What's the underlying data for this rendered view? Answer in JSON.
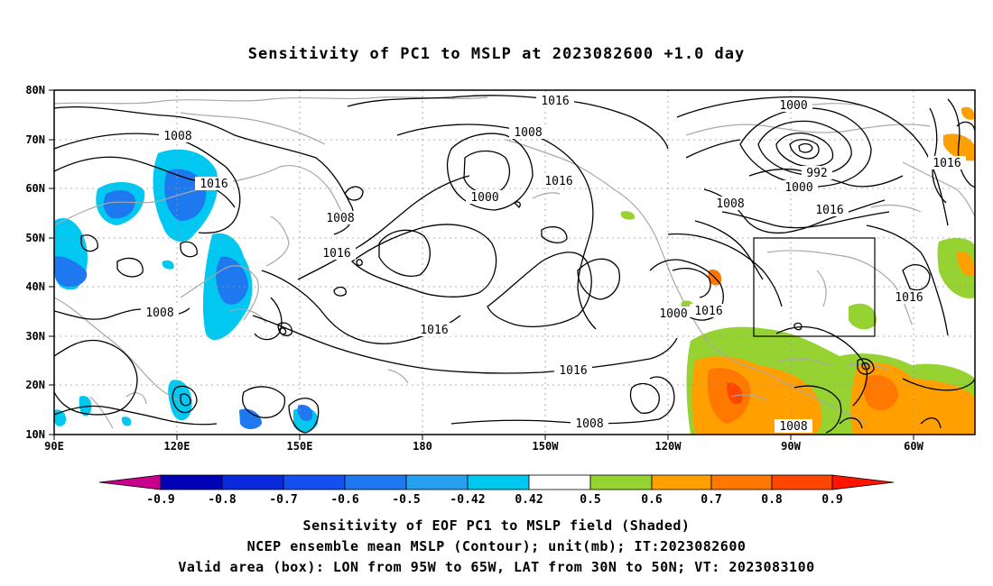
{
  "title": "Sensitivity of PC1 to MSLP at 2023082600 +1.0 day",
  "map": {
    "lat_ticks": [
      "80N",
      "70N",
      "60N",
      "50N",
      "40N",
      "30N",
      "20N",
      "10N"
    ],
    "lon_ticks": [
      "90E",
      "120E",
      "150E",
      "180",
      "150W",
      "120W",
      "90W",
      "60W"
    ],
    "contour_labels": [
      "1016",
      "1008",
      "1016",
      "1000",
      "1016",
      "1008",
      "1016",
      "1008",
      "1016",
      "1016",
      "1000",
      "992",
      "1000",
      "1008",
      "1016",
      "1016",
      "1000",
      "1016",
      "1016",
      "1008",
      "1008"
    ]
  },
  "colorbar": {
    "labels": [
      "-0.9",
      "-0.8",
      "-0.7",
      "-0.6",
      "-0.5",
      "-0.42",
      "0.42",
      "0.5",
      "0.6",
      "0.7",
      "0.8",
      "0.9"
    ],
    "colors": [
      "#c8008c",
      "#0000b4",
      "#0a28dc",
      "#1450f0",
      "#1e78f0",
      "#28a0f0",
      "#00c8f0",
      "#ffffff",
      "#96d232",
      "#ffa000",
      "#ff7800",
      "#ff4600",
      "#ff1400",
      "#ff0000",
      "#f5a0c8"
    ]
  },
  "captions": [
    "Sensitivity of EOF PC1 to MSLP field (Shaded)",
    "NCEP ensemble mean MSLP (Contour); unit(mb); IT:2023082600",
    "Valid area (box): LON from 95W to 65W, LAT from 30N to 50N; VT: 2023083100"
  ]
}
